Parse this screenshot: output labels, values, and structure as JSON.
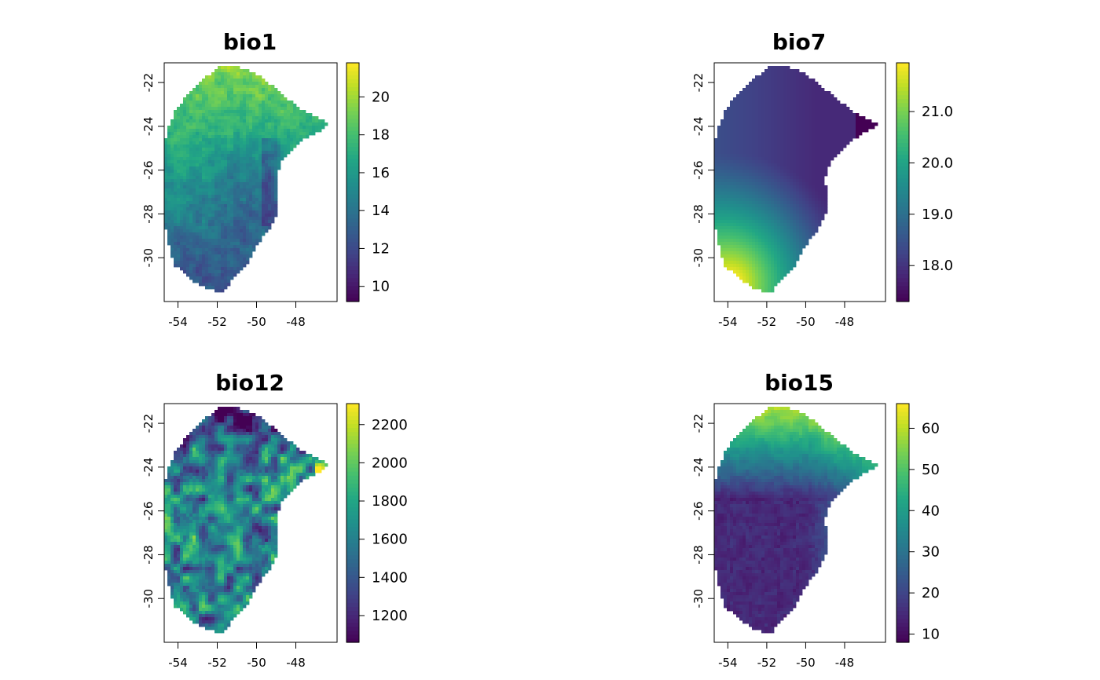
{
  "chart_data": [
    {
      "type": "heatmap",
      "title": "bio1",
      "xlabel": "",
      "ylabel": "",
      "x_ticks": [
        -54,
        -52,
        -50,
        -48
      ],
      "y_ticks": [
        -22,
        -24,
        -26,
        -28,
        -30
      ],
      "xlim": [
        -54.7,
        -45.9
      ],
      "ylim": [
        -32.0,
        -21.1
      ],
      "legend": {
        "position": "right",
        "range": [
          9.2,
          21.8
        ],
        "tick_values": [
          10,
          12,
          14,
          16,
          18,
          20
        ],
        "tick_labels": [
          "10",
          "12",
          "14",
          "16",
          "18",
          "20"
        ]
      },
      "pattern": "warm-north",
      "colormap": "viridis",
      "grid": false
    },
    {
      "type": "heatmap",
      "title": "bio7",
      "xlabel": "",
      "ylabel": "",
      "x_ticks": [
        -54,
        -52,
        -50,
        -48
      ],
      "y_ticks": [
        -22,
        -24,
        -26,
        -28,
        -30
      ],
      "xlim": [
        -54.7,
        -45.9
      ],
      "ylim": [
        -32.0,
        -21.1
      ],
      "legend": {
        "position": "right",
        "range": [
          17.3,
          21.95
        ],
        "tick_values": [
          18.0,
          19.0,
          20.0,
          21.0
        ],
        "tick_labels": [
          "18.0",
          "19.0",
          "20.0",
          "21.0"
        ]
      },
      "pattern": "southwest-gradient",
      "colormap": "viridis",
      "grid": false
    },
    {
      "type": "heatmap",
      "title": "bio12",
      "xlabel": "",
      "ylabel": "",
      "x_ticks": [
        -54,
        -52,
        -50,
        -48
      ],
      "y_ticks": [
        -22,
        -24,
        -26,
        -28,
        -30
      ],
      "xlim": [
        -54.7,
        -45.9
      ],
      "ylim": [
        -32.0,
        -21.1
      ],
      "legend": {
        "position": "right",
        "range": [
          1060,
          2310
        ],
        "tick_values": [
          1200,
          1400,
          1600,
          1800,
          2000,
          2200
        ],
        "tick_labels": [
          "1200",
          "1400",
          "1600",
          "1800",
          "2000",
          "2200"
        ]
      },
      "pattern": "patchy-wet-center",
      "colormap": "viridis",
      "grid": false
    },
    {
      "type": "heatmap",
      "title": "bio15",
      "xlabel": "",
      "ylabel": "",
      "x_ticks": [
        -54,
        -52,
        -50,
        -48
      ],
      "y_ticks": [
        -22,
        -24,
        -26,
        -28,
        -30
      ],
      "xlim": [
        -54.7,
        -45.9
      ],
      "ylim": [
        -32.0,
        -21.1
      ],
      "legend": {
        "position": "right",
        "range": [
          8,
          66
        ],
        "tick_values": [
          10,
          20,
          30,
          40,
          50,
          60
        ],
        "tick_labels": [
          "10",
          "20",
          "30",
          "40",
          "50",
          "60"
        ]
      },
      "pattern": "seasonal-northeast",
      "colormap": "viridis",
      "grid": false
    }
  ]
}
